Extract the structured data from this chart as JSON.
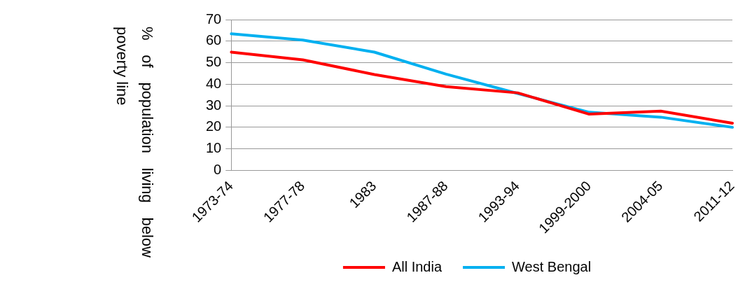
{
  "chart_data": {
    "type": "line",
    "ylabel": "% of population living below poverty line",
    "categories": [
      "1973-74",
      "1977-78",
      "1983",
      "1987-88",
      "1993-94",
      "1999-2000",
      "2004-05",
      "2011-12"
    ],
    "series": [
      {
        "name": "All India",
        "color": "#ff0000",
        "values": [
          54.9,
          51.3,
          44.5,
          38.9,
          36.0,
          26.1,
          27.5,
          21.9
        ]
      },
      {
        "name": "West Bengal",
        "color": "#00b0f0",
        "values": [
          63.4,
          60.5,
          54.9,
          44.7,
          35.7,
          27.0,
          24.7,
          20.0
        ]
      }
    ],
    "ylim": [
      0,
      70
    ],
    "yticks": [
      0,
      10,
      20,
      30,
      40,
      50,
      60,
      70
    ],
    "grid": "y",
    "legend": "bottom",
    "marker": "none",
    "line_style": "solid"
  }
}
